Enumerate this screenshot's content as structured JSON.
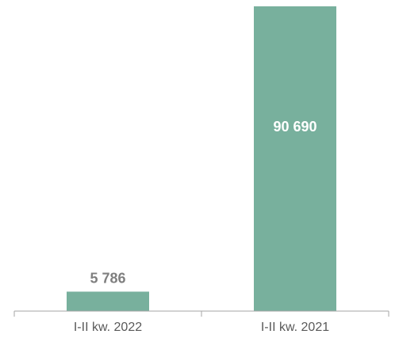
{
  "chart_data": {
    "type": "bar",
    "categories": [
      "I-II kw. 2022",
      "I-II kw. 2021"
    ],
    "values": [
      5786,
      90690
    ],
    "value_labels": [
      "5 786",
      "90 690"
    ],
    "title": "",
    "xlabel": "",
    "ylabel": "",
    "ylim": [
      0,
      90690
    ],
    "grid": false,
    "legend": "none",
    "colors": {
      "bar": "#78b09d",
      "label_outside": "#7f7f7f",
      "label_inside": "#ffffff",
      "axis": "#a6a6a6",
      "tick_label": "#595959"
    }
  }
}
